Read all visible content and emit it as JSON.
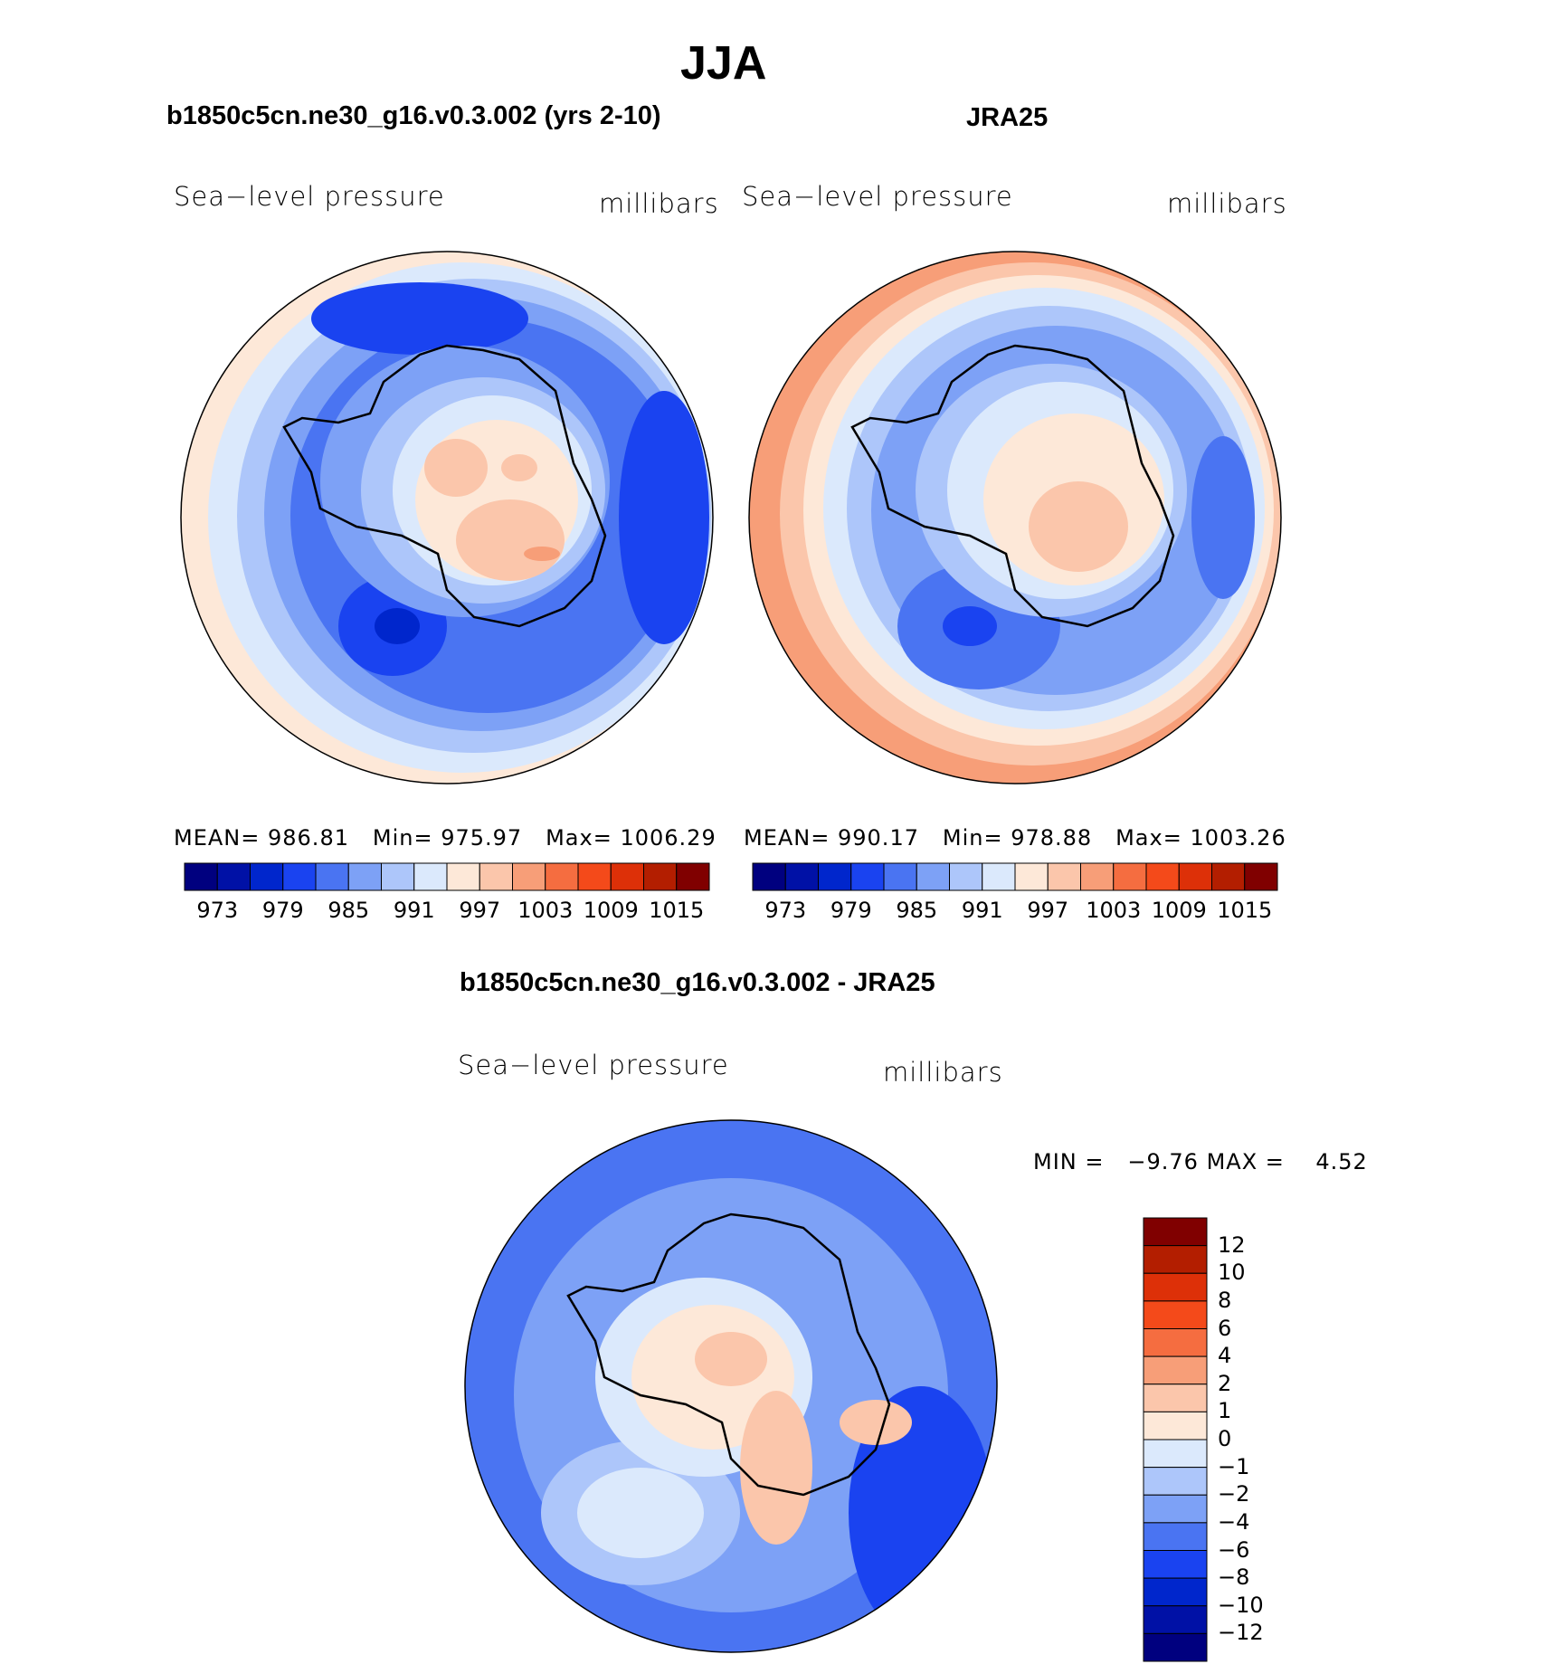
{
  "season": "JJA",
  "panels": {
    "model": {
      "title": "b1850c5cn.ne30_g16.v0.3.002 (yrs 2-10)",
      "variable": "Sea−level pressure",
      "units": "millibars",
      "stats": {
        "mean_label": "MEAN=",
        "mean": "986.81",
        "min_label": "Min=",
        "min": "975.97",
        "max_label": "Max=",
        "max": "1006.29"
      }
    },
    "obs": {
      "title": "JRA25",
      "variable": "Sea−level pressure",
      "units": "millibars",
      "stats": {
        "mean_label": "MEAN=",
        "mean": "990.17",
        "min_label": "Min=",
        "min": "978.88",
        "max_label": "Max=",
        "max": "1003.26"
      }
    },
    "diff": {
      "title": "b1850c5cn.ne30_g16.v0.3.002 - JRA25",
      "variable": "Sea−level pressure",
      "units": "millibars",
      "stats": {
        "min_label": "MIN =",
        "min": "−9.76",
        "max_label": "MAX =",
        "max": "4.52"
      }
    }
  },
  "colorbar_abs": {
    "colors": [
      "#00007f",
      "#0011a6",
      "#0026cc",
      "#1a43f0",
      "#4a74f2",
      "#7da1f6",
      "#adc6fa",
      "#dbe9fc",
      "#fde8d8",
      "#fbc6ab",
      "#f79e78",
      "#f56d40",
      "#f44a1a",
      "#dd3008",
      "#b31e00",
      "#800000"
    ],
    "labels": [
      "973",
      "979",
      "985",
      "991",
      "997",
      "1003",
      "1009",
      "1015"
    ]
  },
  "colorbar_diff": {
    "colors": [
      "#800000",
      "#b31e00",
      "#dd3008",
      "#f44a1a",
      "#f56d40",
      "#f79e78",
      "#fbc6ab",
      "#fde8d8",
      "#dbe9fc",
      "#adc6fa",
      "#7da1f6",
      "#4a74f2",
      "#1a43f0",
      "#0026cc",
      "#0011a6",
      "#00007f"
    ],
    "labels": [
      "12",
      "10",
      "8",
      "6",
      "4",
      "2",
      "1",
      "0",
      "−1",
      "−2",
      "−4",
      "−6",
      "−8",
      "−10",
      "−12"
    ]
  },
  "map_colors": {
    "coastline": "#000000",
    "rim": "#000000"
  }
}
